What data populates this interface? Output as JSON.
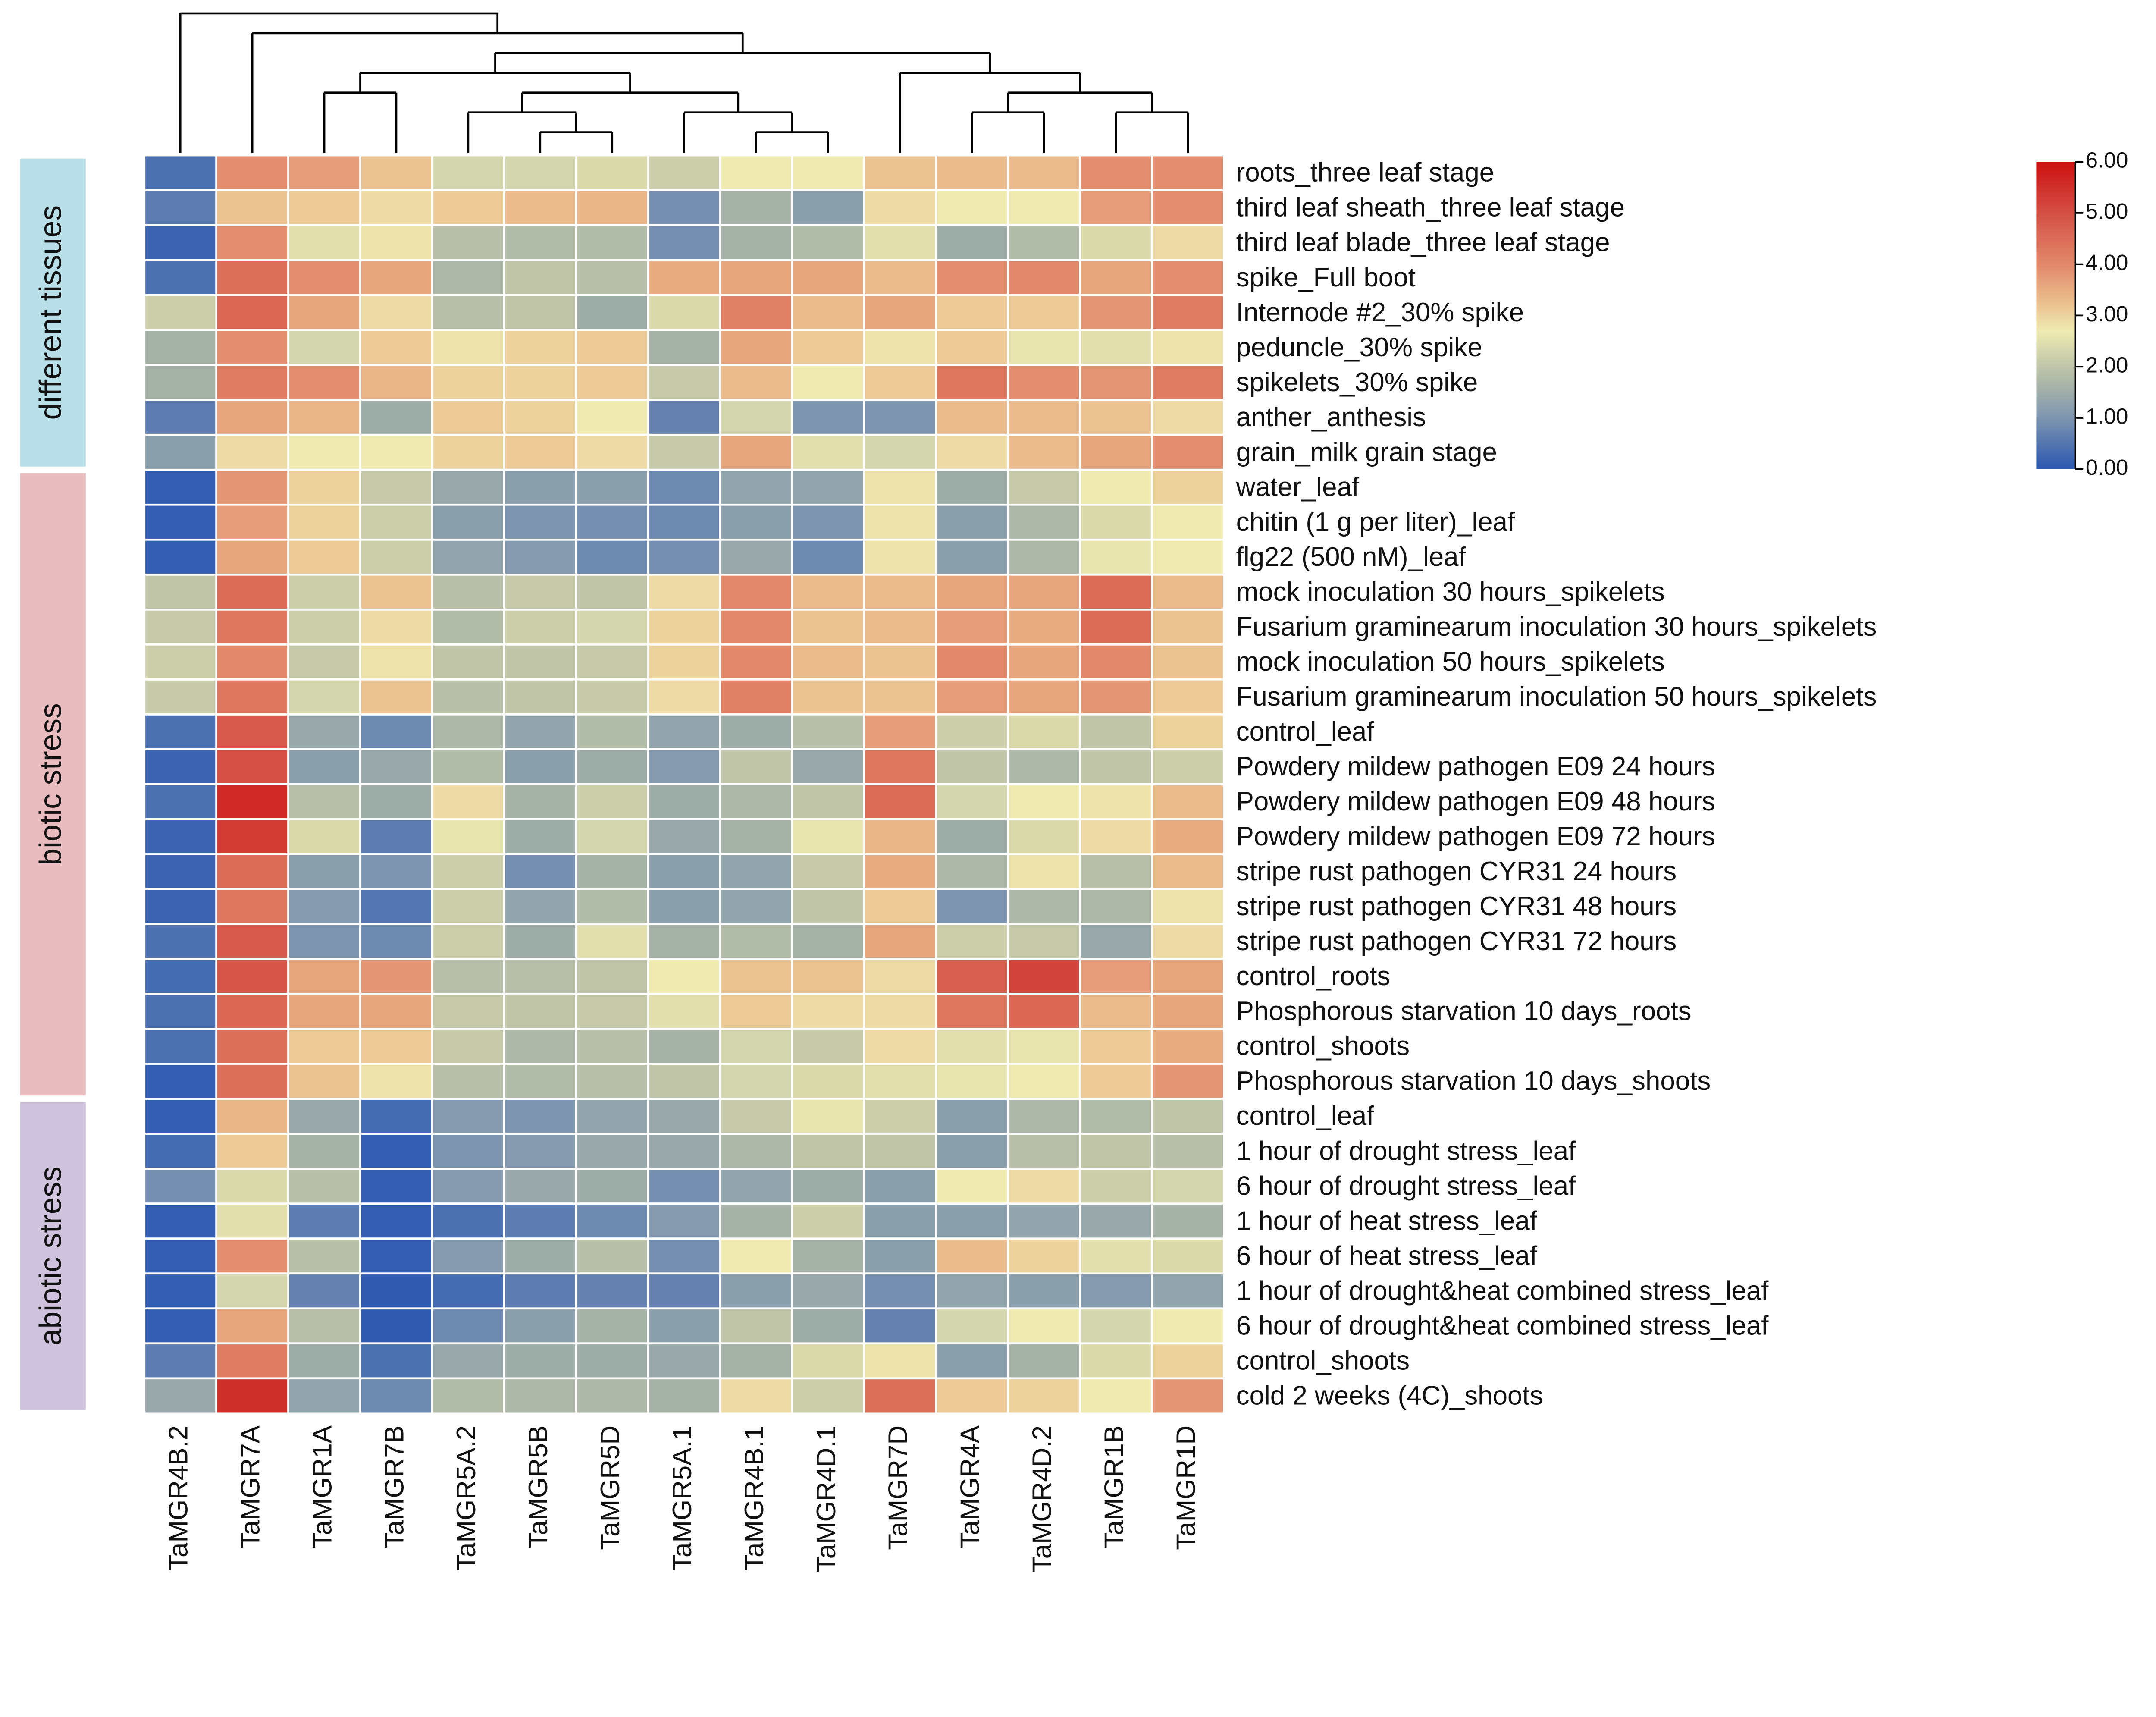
{
  "chart_data": {
    "type": "heatmap",
    "title": "",
    "columns": [
      "TaMGR4B.2",
      "TaMGR7A",
      "TaMGR1A",
      "TaMGR7B",
      "TaMGR5A.2",
      "TaMGR5B",
      "TaMGR5D",
      "TaMGR5A.1",
      "TaMGR4B.1",
      "TaMGR4D.1",
      "TaMGR7D",
      "TaMGR4A",
      "TaMGR4D.2",
      "TaMGR1B",
      "TaMGR1D"
    ],
    "rows": [
      "roots_three leaf stage",
      "third leaf sheath_three leaf stage",
      "third leaf blade_three leaf stage",
      "spike_Full boot",
      "Internode #2_30% spike",
      "peduncle_30% spike",
      "spikelets_30% spike",
      "anther_anthesis",
      "grain_milk grain stage",
      "water_leaf",
      "chitin (1 g per liter)_leaf",
      "flg22 (500 nM)_leaf",
      "mock inoculation 30 hours_spikelets",
      "Fusarium graminearum inoculation 30 hours_spikelets",
      "mock inoculation 50 hours_spikelets",
      "Fusarium graminearum inoculation 50 hours_spikelets",
      "control_leaf",
      "Powdery mildew pathogen E09 24 hours",
      "Powdery mildew pathogen E09 48 hours",
      "Powdery mildew pathogen E09 72 hours",
      "stripe rust pathogen CYR31 24 hours",
      "stripe rust pathogen CYR31 48 hours",
      "stripe rust pathogen CYR31 72 hours",
      "control_roots",
      "Phosphorous starvation 10 days_roots",
      "control_shoots",
      "Phosphorous starvation 10 days_shoots",
      "control_leaf",
      "1 hour of drought stress_leaf",
      "6 hour of drought stress_leaf",
      "1 hour of heat stress_leaf",
      "6 hour of heat stress_leaf",
      "1 hour of drought&heat combined stress_leaf",
      "6 hour of drought&heat combined stress_leaf",
      "control_shoots",
      "cold 2 weeks (4C)_shoots"
    ],
    "values": [
      [
        0.4,
        3.9,
        3.7,
        3.2,
        2.3,
        2.3,
        2.4,
        2.2,
        2.7,
        2.7,
        3.2,
        3.3,
        3.3,
        3.9,
        3.9
      ],
      [
        0.6,
        3.2,
        3.1,
        2.9,
        3.1,
        3.3,
        3.4,
        0.9,
        1.6,
        1.2,
        2.9,
        2.7,
        2.7,
        3.7,
        3.9
      ],
      [
        0.2,
        3.9,
        2.5,
        2.8,
        1.9,
        1.8,
        1.8,
        0.9,
        1.6,
        1.8,
        2.5,
        1.5,
        1.8,
        2.4,
        2.9
      ],
      [
        0.4,
        4.4,
        3.9,
        3.6,
        1.7,
        2.0,
        1.9,
        3.5,
        3.6,
        3.6,
        3.3,
        3.9,
        4.0,
        3.6,
        3.9
      ],
      [
        2.2,
        4.6,
        3.6,
        2.9,
        1.9,
        2.0,
        1.5,
        2.4,
        4.1,
        3.3,
        3.6,
        3.1,
        3.1,
        3.8,
        4.2
      ],
      [
        1.6,
        3.9,
        2.3,
        3.1,
        2.8,
        3.0,
        3.1,
        1.6,
        3.6,
        3.1,
        2.8,
        3.1,
        2.6,
        2.5,
        2.8
      ],
      [
        1.6,
        4.2,
        3.9,
        3.4,
        3.0,
        3.0,
        3.1,
        2.1,
        3.3,
        2.7,
        3.1,
        4.3,
        3.9,
        3.8,
        4.2
      ],
      [
        0.6,
        3.6,
        3.4,
        1.5,
        3.1,
        3.0,
        2.7,
        0.7,
        2.3,
        1.0,
        1.0,
        3.3,
        3.3,
        3.2,
        2.9
      ],
      [
        1.2,
        2.9,
        2.7,
        2.7,
        3.0,
        3.1,
        2.9,
        2.1,
        3.6,
        2.5,
        2.3,
        2.9,
        3.3,
        3.6,
        3.9
      ],
      [
        0.1,
        3.8,
        3.0,
        2.1,
        1.4,
        1.2,
        1.2,
        0.8,
        1.3,
        1.3,
        2.8,
        1.5,
        2.1,
        2.7,
        3.0
      ],
      [
        0.1,
        3.7,
        3.0,
        2.2,
        1.2,
        1.0,
        0.9,
        0.8,
        1.2,
        1.0,
        2.8,
        1.2,
        1.7,
        2.4,
        2.7
      ],
      [
        0.1,
        3.6,
        3.1,
        2.2,
        1.3,
        1.1,
        0.8,
        0.9,
        1.4,
        0.8,
        2.8,
        1.2,
        1.7,
        2.6,
        2.7
      ],
      [
        2.0,
        4.5,
        2.2,
        3.2,
        1.9,
        2.1,
        2.0,
        2.9,
        4.0,
        3.3,
        3.3,
        3.6,
        3.6,
        4.5,
        3.3
      ],
      [
        2.1,
        4.3,
        2.2,
        2.9,
        1.8,
        2.2,
        2.3,
        3.0,
        4.0,
        3.2,
        3.3,
        3.7,
        3.5,
        4.5,
        3.2
      ],
      [
        2.2,
        4.0,
        2.1,
        2.8,
        2.0,
        2.0,
        2.1,
        3.0,
        4.0,
        3.3,
        3.2,
        4.0,
        3.6,
        4.0,
        3.2
      ],
      [
        2.1,
        4.3,
        2.3,
        3.2,
        1.9,
        2.0,
        2.1,
        2.9,
        4.1,
        3.2,
        3.2,
        3.7,
        3.6,
        3.8,
        3.1
      ],
      [
        0.4,
        4.8,
        1.4,
        0.8,
        1.7,
        1.3,
        1.8,
        1.3,
        1.5,
        1.9,
        3.7,
        2.2,
        2.4,
        2.0,
        3.0
      ],
      [
        0.2,
        5.0,
        1.2,
        1.4,
        1.8,
        1.2,
        1.5,
        1.1,
        2.0,
        1.4,
        4.3,
        2.0,
        1.7,
        2.0,
        2.2
      ],
      [
        0.4,
        5.6,
        1.9,
        1.5,
        2.9,
        1.6,
        2.2,
        1.5,
        1.7,
        2.0,
        4.5,
        2.3,
        2.7,
        2.8,
        3.3
      ],
      [
        0.2,
        5.3,
        2.4,
        0.6,
        2.6,
        1.5,
        2.3,
        1.4,
        1.6,
        2.6,
        3.4,
        1.5,
        2.4,
        2.9,
        3.5
      ],
      [
        0.2,
        4.5,
        1.2,
        1.0,
        2.2,
        0.9,
        1.6,
        1.2,
        1.3,
        2.1,
        3.5,
        1.7,
        2.8,
        1.9,
        3.3
      ],
      [
        0.2,
        4.3,
        1.1,
        0.5,
        2.2,
        1.3,
        1.8,
        1.2,
        1.3,
        2.0,
        3.1,
        1.0,
        1.7,
        1.7,
        2.8
      ],
      [
        0.4,
        4.8,
        1.0,
        0.8,
        2.2,
        1.5,
        2.5,
        1.6,
        1.8,
        1.6,
        3.6,
        2.2,
        2.1,
        1.4,
        2.9
      ],
      [
        0.3,
        4.9,
        3.6,
        3.8,
        1.9,
        1.9,
        2.0,
        2.7,
        3.2,
        3.2,
        2.9,
        4.7,
        5.2,
        3.7,
        3.6
      ],
      [
        0.4,
        4.6,
        3.6,
        3.6,
        2.1,
        2.0,
        2.1,
        2.5,
        3.1,
        2.9,
        2.9,
        4.3,
        4.6,
        3.3,
        3.6
      ],
      [
        0.4,
        4.4,
        3.1,
        3.1,
        2.1,
        1.7,
        1.9,
        1.6,
        2.3,
        2.1,
        2.9,
        2.5,
        2.6,
        3.1,
        3.5
      ],
      [
        0.1,
        4.4,
        3.2,
        2.8,
        1.9,
        1.8,
        1.9,
        2.0,
        2.3,
        2.4,
        2.5,
        2.6,
        2.7,
        3.1,
        3.8
      ],
      [
        0.1,
        3.4,
        1.4,
        0.3,
        1.1,
        1.0,
        1.3,
        1.4,
        2.1,
        2.6,
        2.2,
        1.2,
        1.7,
        1.8,
        2.0
      ],
      [
        0.3,
        3.1,
        1.6,
        0.1,
        1.0,
        1.1,
        1.4,
        1.4,
        1.7,
        2.0,
        2.0,
        1.2,
        1.9,
        2.0,
        1.9
      ],
      [
        0.9,
        2.4,
        1.9,
        0.1,
        1.1,
        1.4,
        1.5,
        0.9,
        1.3,
        1.5,
        1.2,
        2.7,
        2.9,
        2.2,
        2.3
      ],
      [
        0.1,
        2.5,
        0.6,
        0.1,
        0.4,
        0.6,
        0.8,
        1.1,
        1.6,
        2.2,
        1.2,
        1.2,
        1.3,
        1.4,
        1.6
      ],
      [
        0.1,
        3.9,
        1.9,
        0.1,
        1.1,
        1.5,
        1.9,
        0.9,
        2.7,
        1.6,
        1.2,
        3.3,
        3.0,
        2.5,
        2.4
      ],
      [
        0.1,
        2.3,
        0.7,
        0.05,
        0.3,
        0.6,
        0.7,
        0.7,
        1.2,
        1.4,
        0.9,
        1.3,
        1.2,
        1.1,
        1.3
      ],
      [
        0.1,
        3.6,
        1.9,
        0.05,
        0.8,
        1.2,
        1.6,
        1.2,
        2.0,
        1.5,
        0.7,
        2.3,
        2.7,
        2.3,
        2.7
      ],
      [
        0.6,
        4.2,
        1.5,
        0.4,
        1.4,
        1.5,
        1.5,
        1.4,
        1.6,
        2.4,
        2.8,
        1.2,
        1.6,
        2.4,
        3.0
      ],
      [
        1.4,
        5.5,
        1.3,
        0.8,
        1.8,
        1.7,
        1.7,
        1.6,
        2.9,
        2.2,
        4.4,
        3.1,
        3.0,
        2.7,
        3.8
      ]
    ],
    "row_groups": [
      {
        "label": "different tissues",
        "first_row": 0,
        "last_row": 8,
        "color": "#b9dfe8"
      },
      {
        "label": "biotic stress",
        "first_row": 9,
        "last_row": 26,
        "color": "#e9bdc0"
      },
      {
        "label": "abiotic stress",
        "first_row": 27,
        "last_row": 35,
        "color": "#cfc3dd"
      }
    ],
    "column_dendrogram": {
      "h": 7,
      "c": [
        0,
        {
          "h": 6,
          "c": [
            1,
            {
              "h": 5,
              "c": [
                {
                  "h": 4,
                  "c": [
                    {
                      "h": 3,
                      "c": [
                        2,
                        3
                      ]
                    },
                    {
                      "h": 3,
                      "c": [
                        {
                          "h": 2,
                          "c": [
                            4,
                            {
                              "h": 1,
                              "c": [
                                5,
                                6
                              ]
                            }
                          ]
                        },
                        {
                          "h": 2,
                          "c": [
                            7,
                            {
                              "h": 1,
                              "c": [
                                8,
                                9
                              ]
                            }
                          ]
                        }
                      ]
                    }
                  ]
                },
                {
                  "h": 4,
                  "c": [
                    10,
                    {
                      "h": 3,
                      "c": [
                        {
                          "h": 2,
                          "c": [
                            11,
                            12
                          ]
                        },
                        {
                          "h": 2,
                          "c": [
                            13,
                            14
                          ]
                        }
                      ]
                    }
                  ]
                }
              ]
            }
          ]
        }
      ]
    },
    "colorbar": {
      "range": [
        0,
        6
      ],
      "tick_labels": [
        "0.00",
        "1.00",
        "2.00",
        "3.00",
        "4.00",
        "5.00",
        "6.00"
      ],
      "stops": [
        [
          0,
          "#2b57b0"
        ],
        [
          1,
          "#7e95b0"
        ],
        [
          1.6,
          "#a6b2a8"
        ],
        [
          2.1,
          "#c6caaa"
        ],
        [
          2.7,
          "#eeeab0"
        ],
        [
          3.2,
          "#ebc291"
        ],
        [
          4,
          "#e2886a"
        ],
        [
          5,
          "#d44f45"
        ],
        [
          6,
          "#cc1111"
        ]
      ]
    }
  }
}
